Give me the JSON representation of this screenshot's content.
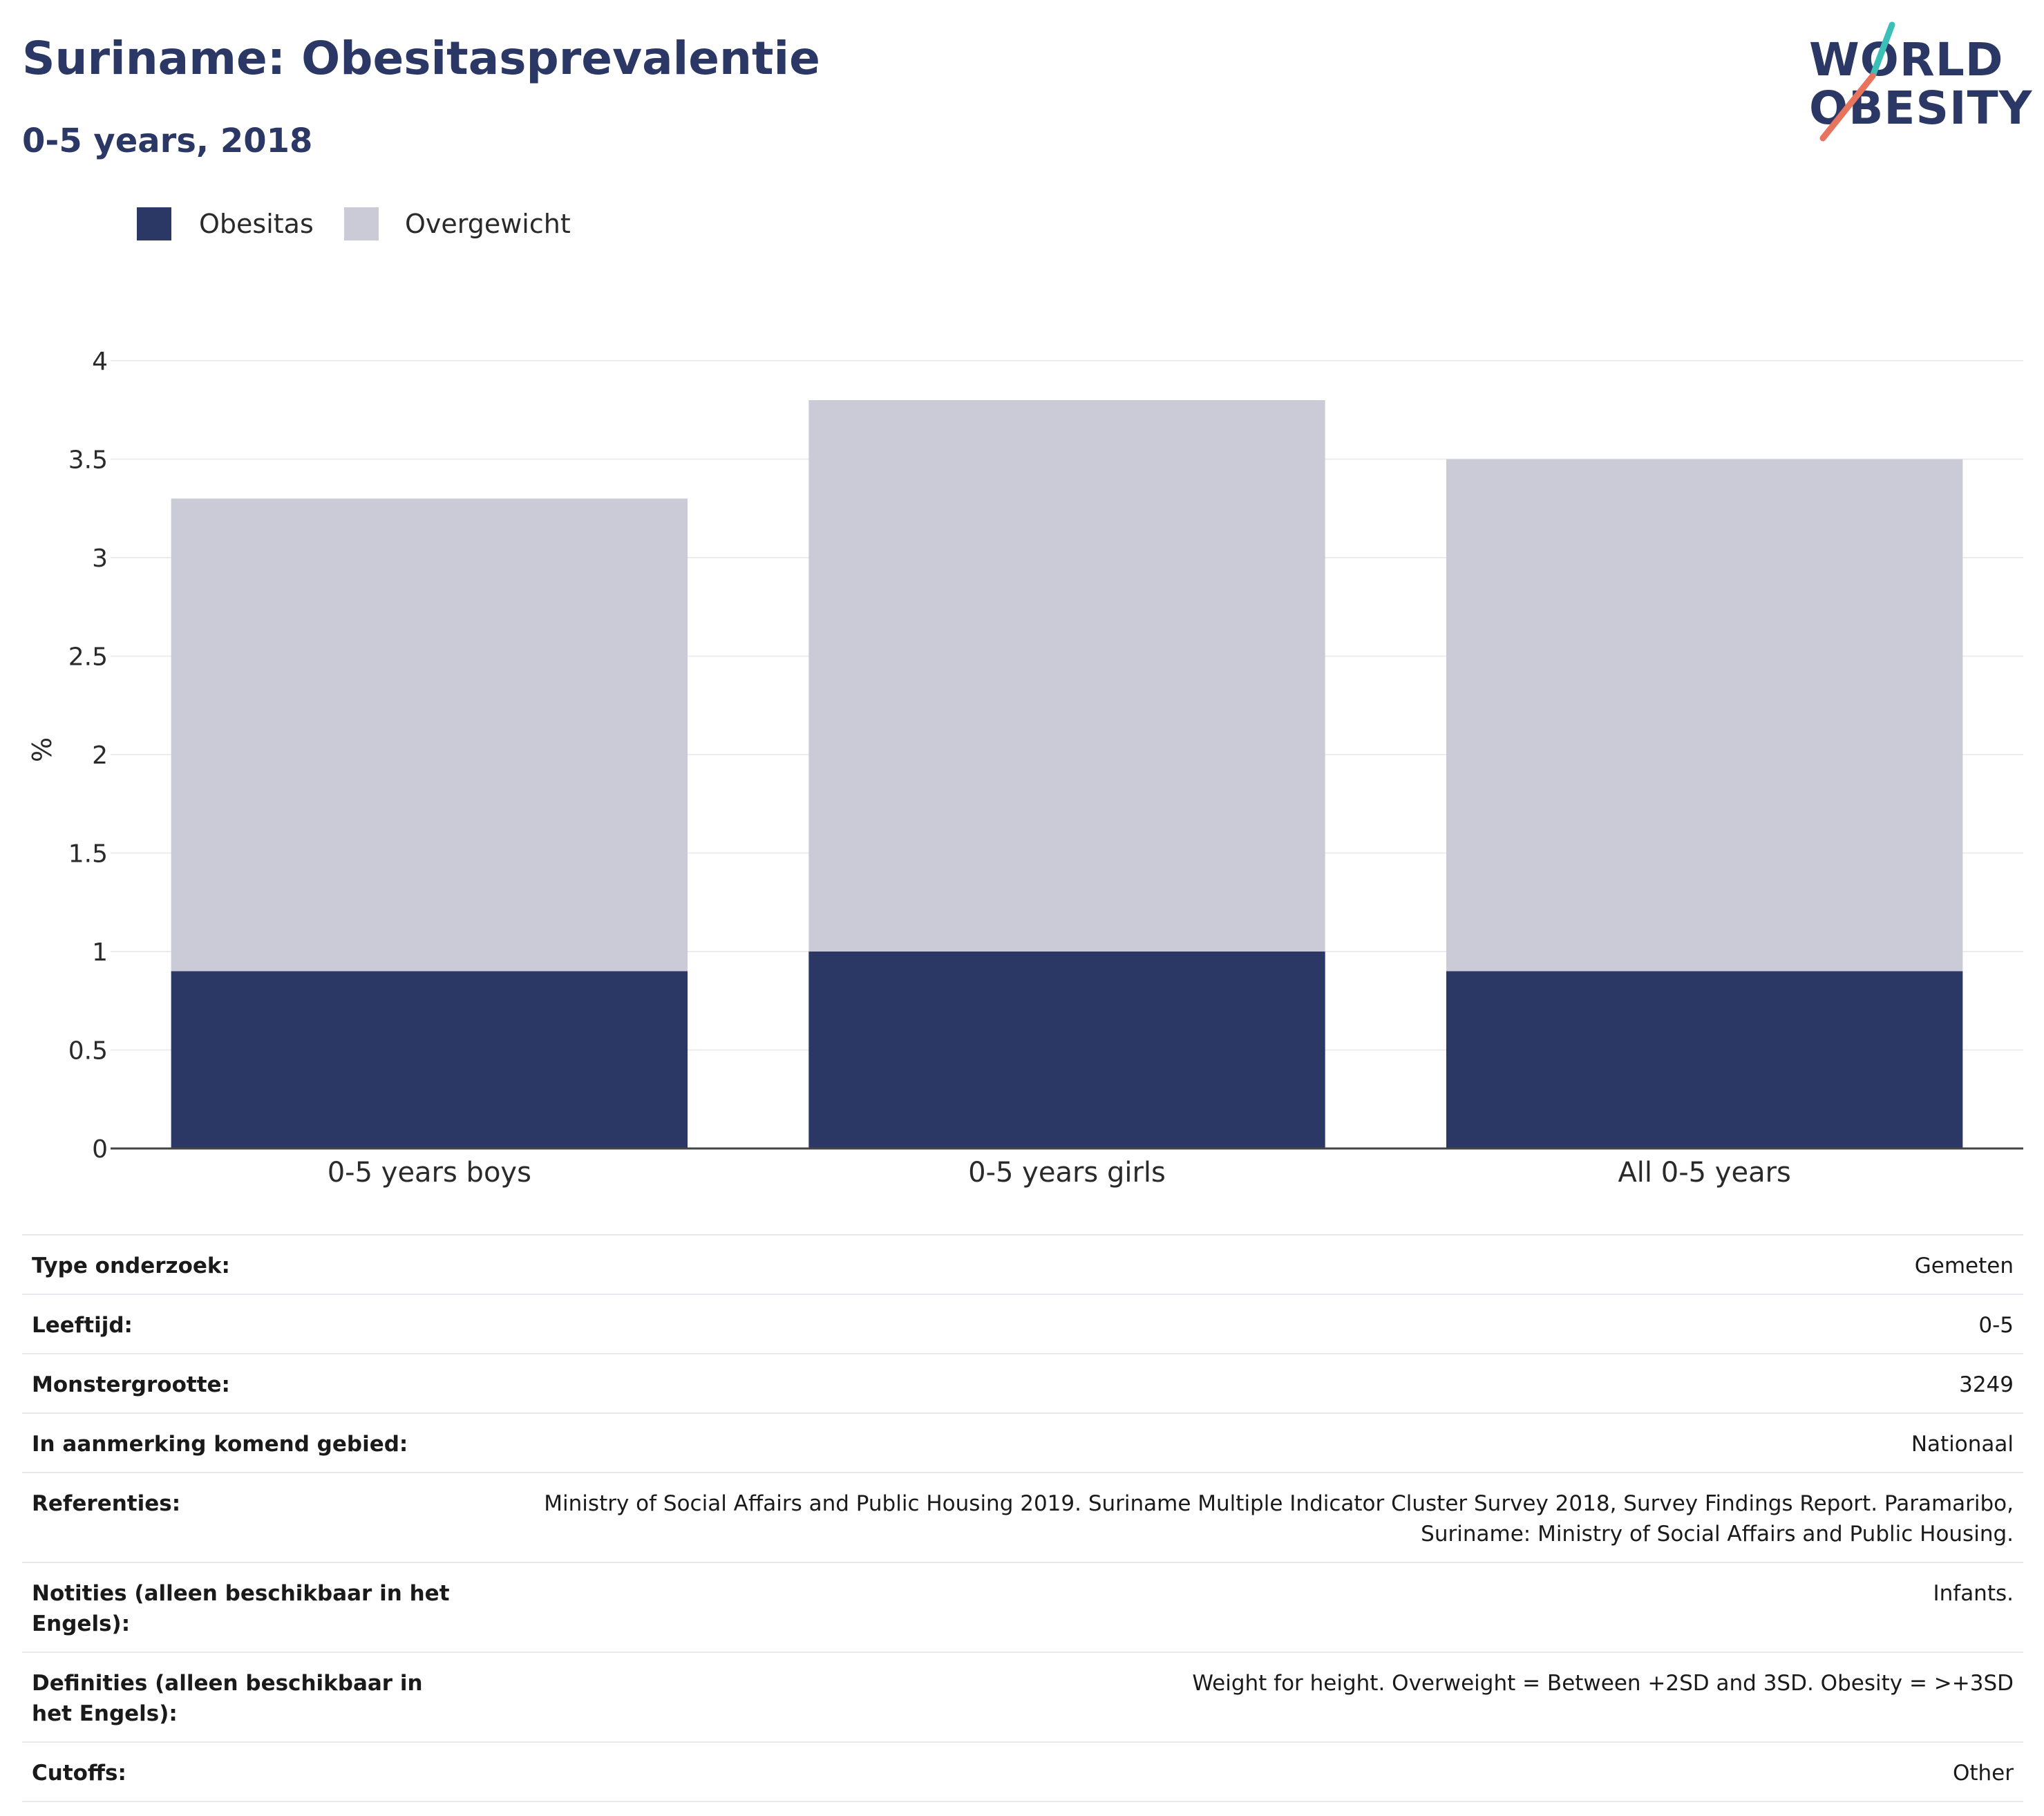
{
  "header": {
    "title": "Suriname: Obesitasprevalentie",
    "subtitle": "0-5 years, 2018"
  },
  "logo": {
    "line1": "WORLD",
    "line2": "OBESITY",
    "colors": {
      "text": "#2b3764",
      "slash_top": "#3bbfb6",
      "slash_bottom": "#e8735e"
    }
  },
  "legend": [
    {
      "label": "Obesitas",
      "color": "#2b3764"
    },
    {
      "label": "Overgewicht",
      "color": "#cacbd7"
    }
  ],
  "chart_data": {
    "type": "bar",
    "stacked": true,
    "categories": [
      "0-5 years boys",
      "0-5 years girls",
      "All 0-5 years"
    ],
    "series": [
      {
        "name": "Obesitas",
        "color": "#2b3764",
        "values": [
          0.9,
          1.0,
          0.9
        ]
      },
      {
        "name": "Overgewicht",
        "color": "#cacbd7",
        "values": [
          2.4,
          2.8,
          2.6
        ]
      }
    ],
    "ylabel": "%",
    "ylim": [
      0,
      4
    ],
    "yticks": [
      "0",
      "0.5",
      "1",
      "1.5",
      "2",
      "2.5",
      "3",
      "3.5",
      "4"
    ],
    "grid": true,
    "legend_position": "top-left"
  },
  "info": [
    {
      "key": "Type onderzoek:",
      "value": "Gemeten"
    },
    {
      "key": "Leeftijd:",
      "value": "0-5"
    },
    {
      "key": "Monstergrootte:",
      "value": "3249"
    },
    {
      "key": "In aanmerking komend gebied:",
      "value": "Nationaal"
    },
    {
      "key": "Referenties:",
      "value": "Ministry of Social Affairs and Public Housing 2019. Suriname Multiple Indicator Cluster Survey 2018, Survey Findings Report. Paramaribo, Suriname: Ministry of Social Affairs and Public Housing."
    },
    {
      "key": "Notities (alleen beschikbaar in het Engels):",
      "value": "Infants."
    },
    {
      "key": "Definities (alleen beschikbaar in het Engels):",
      "value": "Weight for height. Overweight = Between +2SD and 3SD. Obesity = >+3SD"
    },
    {
      "key": "Cutoffs:",
      "value": "Other"
    }
  ]
}
